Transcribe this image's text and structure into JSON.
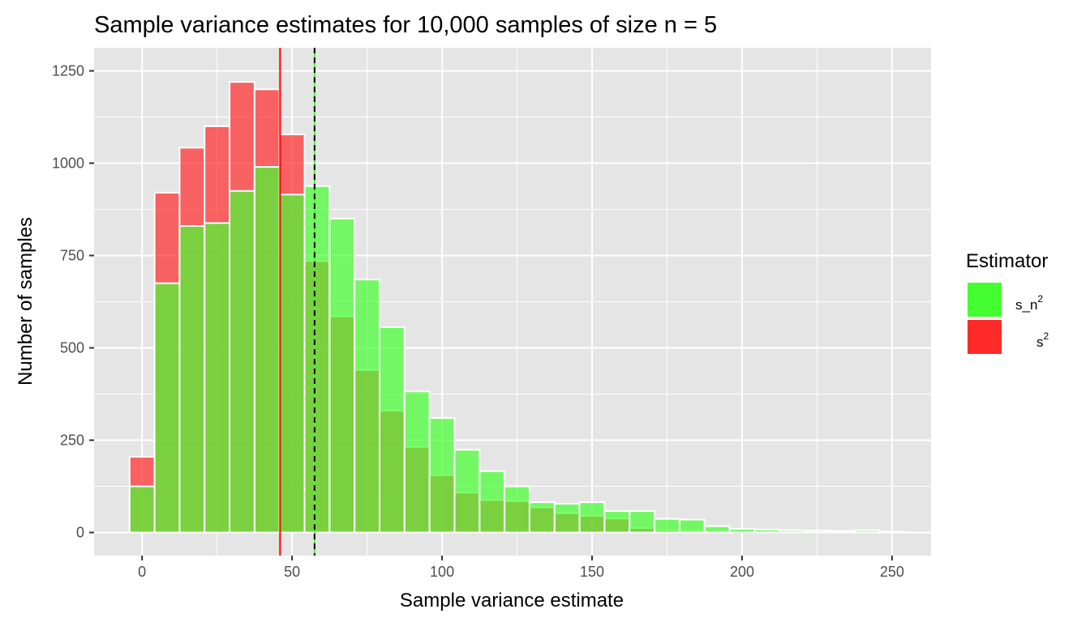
{
  "chart_data": {
    "type": "bar",
    "subtype": "overlaid-histogram",
    "title": "Sample variance estimates for 10,000 samples of size n = 5",
    "xlabel": "Sample variance estimate",
    "ylabel": "Number of samples",
    "xlim": [
      -16,
      263
    ],
    "ylim": [
      -62.5,
      1312.5
    ],
    "x_ticks": [
      0,
      50,
      100,
      150,
      200,
      250
    ],
    "y_ticks": [
      0,
      250,
      500,
      750,
      1000,
      1250
    ],
    "x_tick_labels": [
      "0",
      "50",
      "100",
      "150",
      "200",
      "250"
    ],
    "y_tick_labels": [
      "0",
      "250",
      "500",
      "750",
      "1000",
      "1250"
    ],
    "bin_width": 8.33,
    "bin_centers": [
      0,
      8.33,
      16.67,
      25,
      33.33,
      41.67,
      50,
      58.33,
      66.67,
      75,
      83.33,
      91.67,
      100,
      108.33,
      116.67,
      125,
      133.33,
      141.67,
      150,
      158.33,
      166.67,
      175,
      183.33,
      191.67,
      200,
      208.33,
      216.67,
      225,
      233.33,
      241.67,
      250
    ],
    "grid": true,
    "background": "#e5e5e5",
    "legend_position": "right",
    "legend": {
      "title": "Estimator",
      "items": [
        {
          "base": "s_n",
          "sup": "2",
          "color": "#44ff2f"
        },
        {
          "base": "s",
          "sup": "2",
          "color": "#ff2a2a"
        }
      ]
    },
    "series": [
      {
        "key": "s2",
        "color": "#ff2a2a",
        "fill_opacity": 0.7,
        "values": [
          205,
          920,
          1042,
          1100,
          1220,
          1200,
          1078,
          735,
          585,
          440,
          330,
          232,
          155,
          108,
          88,
          85,
          68,
          52,
          45,
          38,
          12,
          6,
          5,
          4,
          3,
          2,
          2,
          1,
          1,
          0,
          0
        ]
      },
      {
        "key": "s_n2",
        "color": "#44ff2f",
        "fill_opacity": 0.7,
        "values": [
          125,
          675,
          830,
          838,
          925,
          990,
          915,
          938,
          850,
          685,
          556,
          382,
          310,
          224,
          166,
          125,
          82,
          78,
          82,
          58,
          58,
          37,
          35,
          17,
          10,
          8,
          6,
          5,
          4,
          6,
          2
        ]
      }
    ],
    "vlines": [
      {
        "x": 46,
        "color": "#ff0000",
        "style": "solid"
      },
      {
        "x": 57.5,
        "color": "#44ff2f",
        "style": "solid"
      },
      {
        "x": 57.5,
        "color": "#000000",
        "style": "dashed"
      }
    ]
  }
}
